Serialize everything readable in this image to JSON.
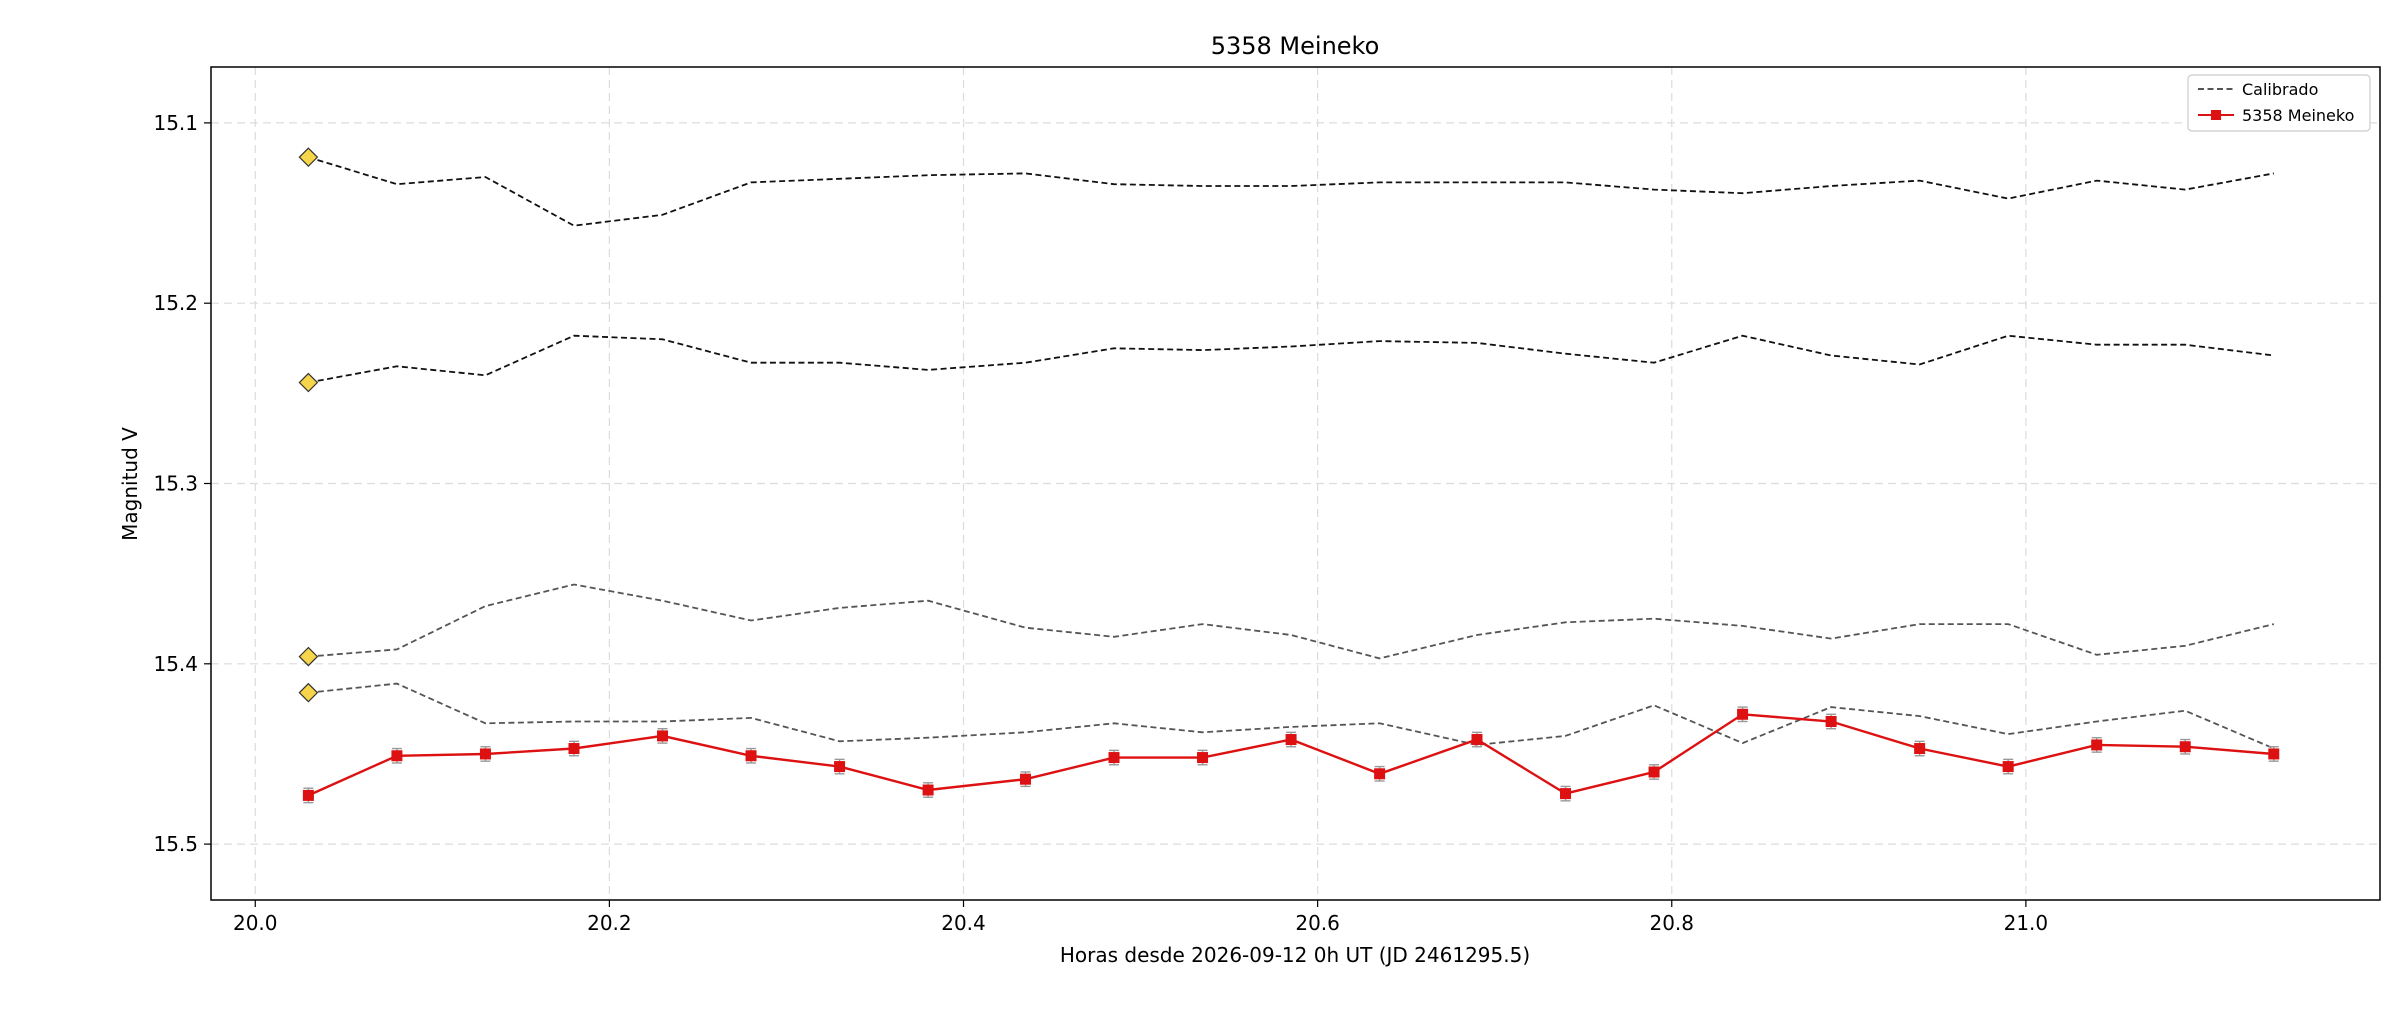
{
  "chart_data": {
    "type": "line",
    "title": "5358 Meineko",
    "xlabel": "Horas desde 2026-09-12 0h UT (JD 2461295.5)",
    "ylabel": "Magnitud V",
    "xlim": [
      19.975,
      21.2
    ],
    "ylim": [
      15.531,
      15.069
    ],
    "y_inverted": true,
    "grid": true,
    "legend_position": "top-right",
    "x_ticks": [
      20.0,
      20.2,
      20.4,
      20.6,
      20.8,
      21.0
    ],
    "x_tick_labels": [
      "20.0",
      "20.2",
      "20.4",
      "20.6",
      "20.8",
      "21.0"
    ],
    "y_ticks": [
      15.1,
      15.2,
      15.3,
      15.4,
      15.5
    ],
    "y_tick_labels": [
      "15.1",
      "15.2",
      "15.3",
      "15.4",
      "15.5"
    ],
    "x": [
      20.03,
      20.08,
      20.13,
      20.18,
      20.23,
      20.28,
      20.33,
      20.38,
      20.435,
      20.485,
      20.535,
      20.585,
      20.635,
      20.69,
      20.74,
      20.79,
      20.84,
      20.89,
      20.94,
      20.99,
      21.04,
      21.09,
      21.14
    ],
    "series": [
      {
        "name": "Calibrado",
        "role": "comparison",
        "color": "#111111",
        "style": "dashed",
        "values": [
          15.119,
          15.134,
          15.13,
          15.157,
          15.151,
          15.133,
          15.131,
          15.129,
          15.128,
          15.134,
          15.135,
          15.135,
          15.133,
          15.133,
          15.133,
          15.137,
          15.139,
          15.135,
          15.132,
          15.142,
          15.132,
          15.137,
          15.128
        ]
      },
      {
        "role": "comparison",
        "color": "#111111",
        "style": "dashed",
        "values": [
          15.244,
          15.235,
          15.24,
          15.218,
          15.22,
          15.233,
          15.233,
          15.237,
          15.233,
          15.225,
          15.226,
          15.224,
          15.221,
          15.222,
          15.228,
          15.233,
          15.218,
          15.229,
          15.234,
          15.218,
          15.223,
          15.223,
          15.229
        ]
      },
      {
        "role": "comparison",
        "color": "#555555",
        "style": "dashed",
        "values": [
          15.396,
          15.392,
          15.368,
          15.356,
          15.365,
          15.376,
          15.369,
          15.365,
          15.38,
          15.385,
          15.378,
          15.384,
          15.397,
          15.384,
          15.377,
          15.375,
          15.379,
          15.386,
          15.378,
          15.378,
          15.395,
          15.39,
          15.378
        ]
      },
      {
        "role": "comparison",
        "color": "#555555",
        "style": "dashed",
        "values": [
          15.416,
          15.411,
          15.433,
          15.432,
          15.432,
          15.43,
          15.443,
          15.441,
          15.438,
          15.433,
          15.438,
          15.435,
          15.433,
          15.445,
          15.44,
          15.423,
          15.444,
          15.424,
          15.429,
          15.439,
          15.432,
          15.426,
          15.447
        ]
      },
      {
        "name": "5358 Meineko",
        "role": "target",
        "color": "#dd1111",
        "style": "solid",
        "marker": "square",
        "error": 0.004,
        "values": [
          15.473,
          15.451,
          15.45,
          15.447,
          15.44,
          15.451,
          15.457,
          15.47,
          15.464,
          15.452,
          15.452,
          15.442,
          15.461,
          15.442,
          15.472,
          15.46,
          15.428,
          15.432,
          15.447,
          15.457,
          15.445,
          15.446,
          15.45
        ]
      }
    ],
    "start_markers": {
      "shape": "diamond",
      "color": "#f7d54a",
      "values": [
        15.119,
        15.244,
        15.396,
        15.416
      ]
    },
    "legend": [
      {
        "label": "Calibrado",
        "color": "#555555",
        "style": "dashed"
      },
      {
        "label": "5358 Meineko",
        "color": "#dd1111",
        "style": "solid",
        "marker": "square"
      }
    ]
  }
}
